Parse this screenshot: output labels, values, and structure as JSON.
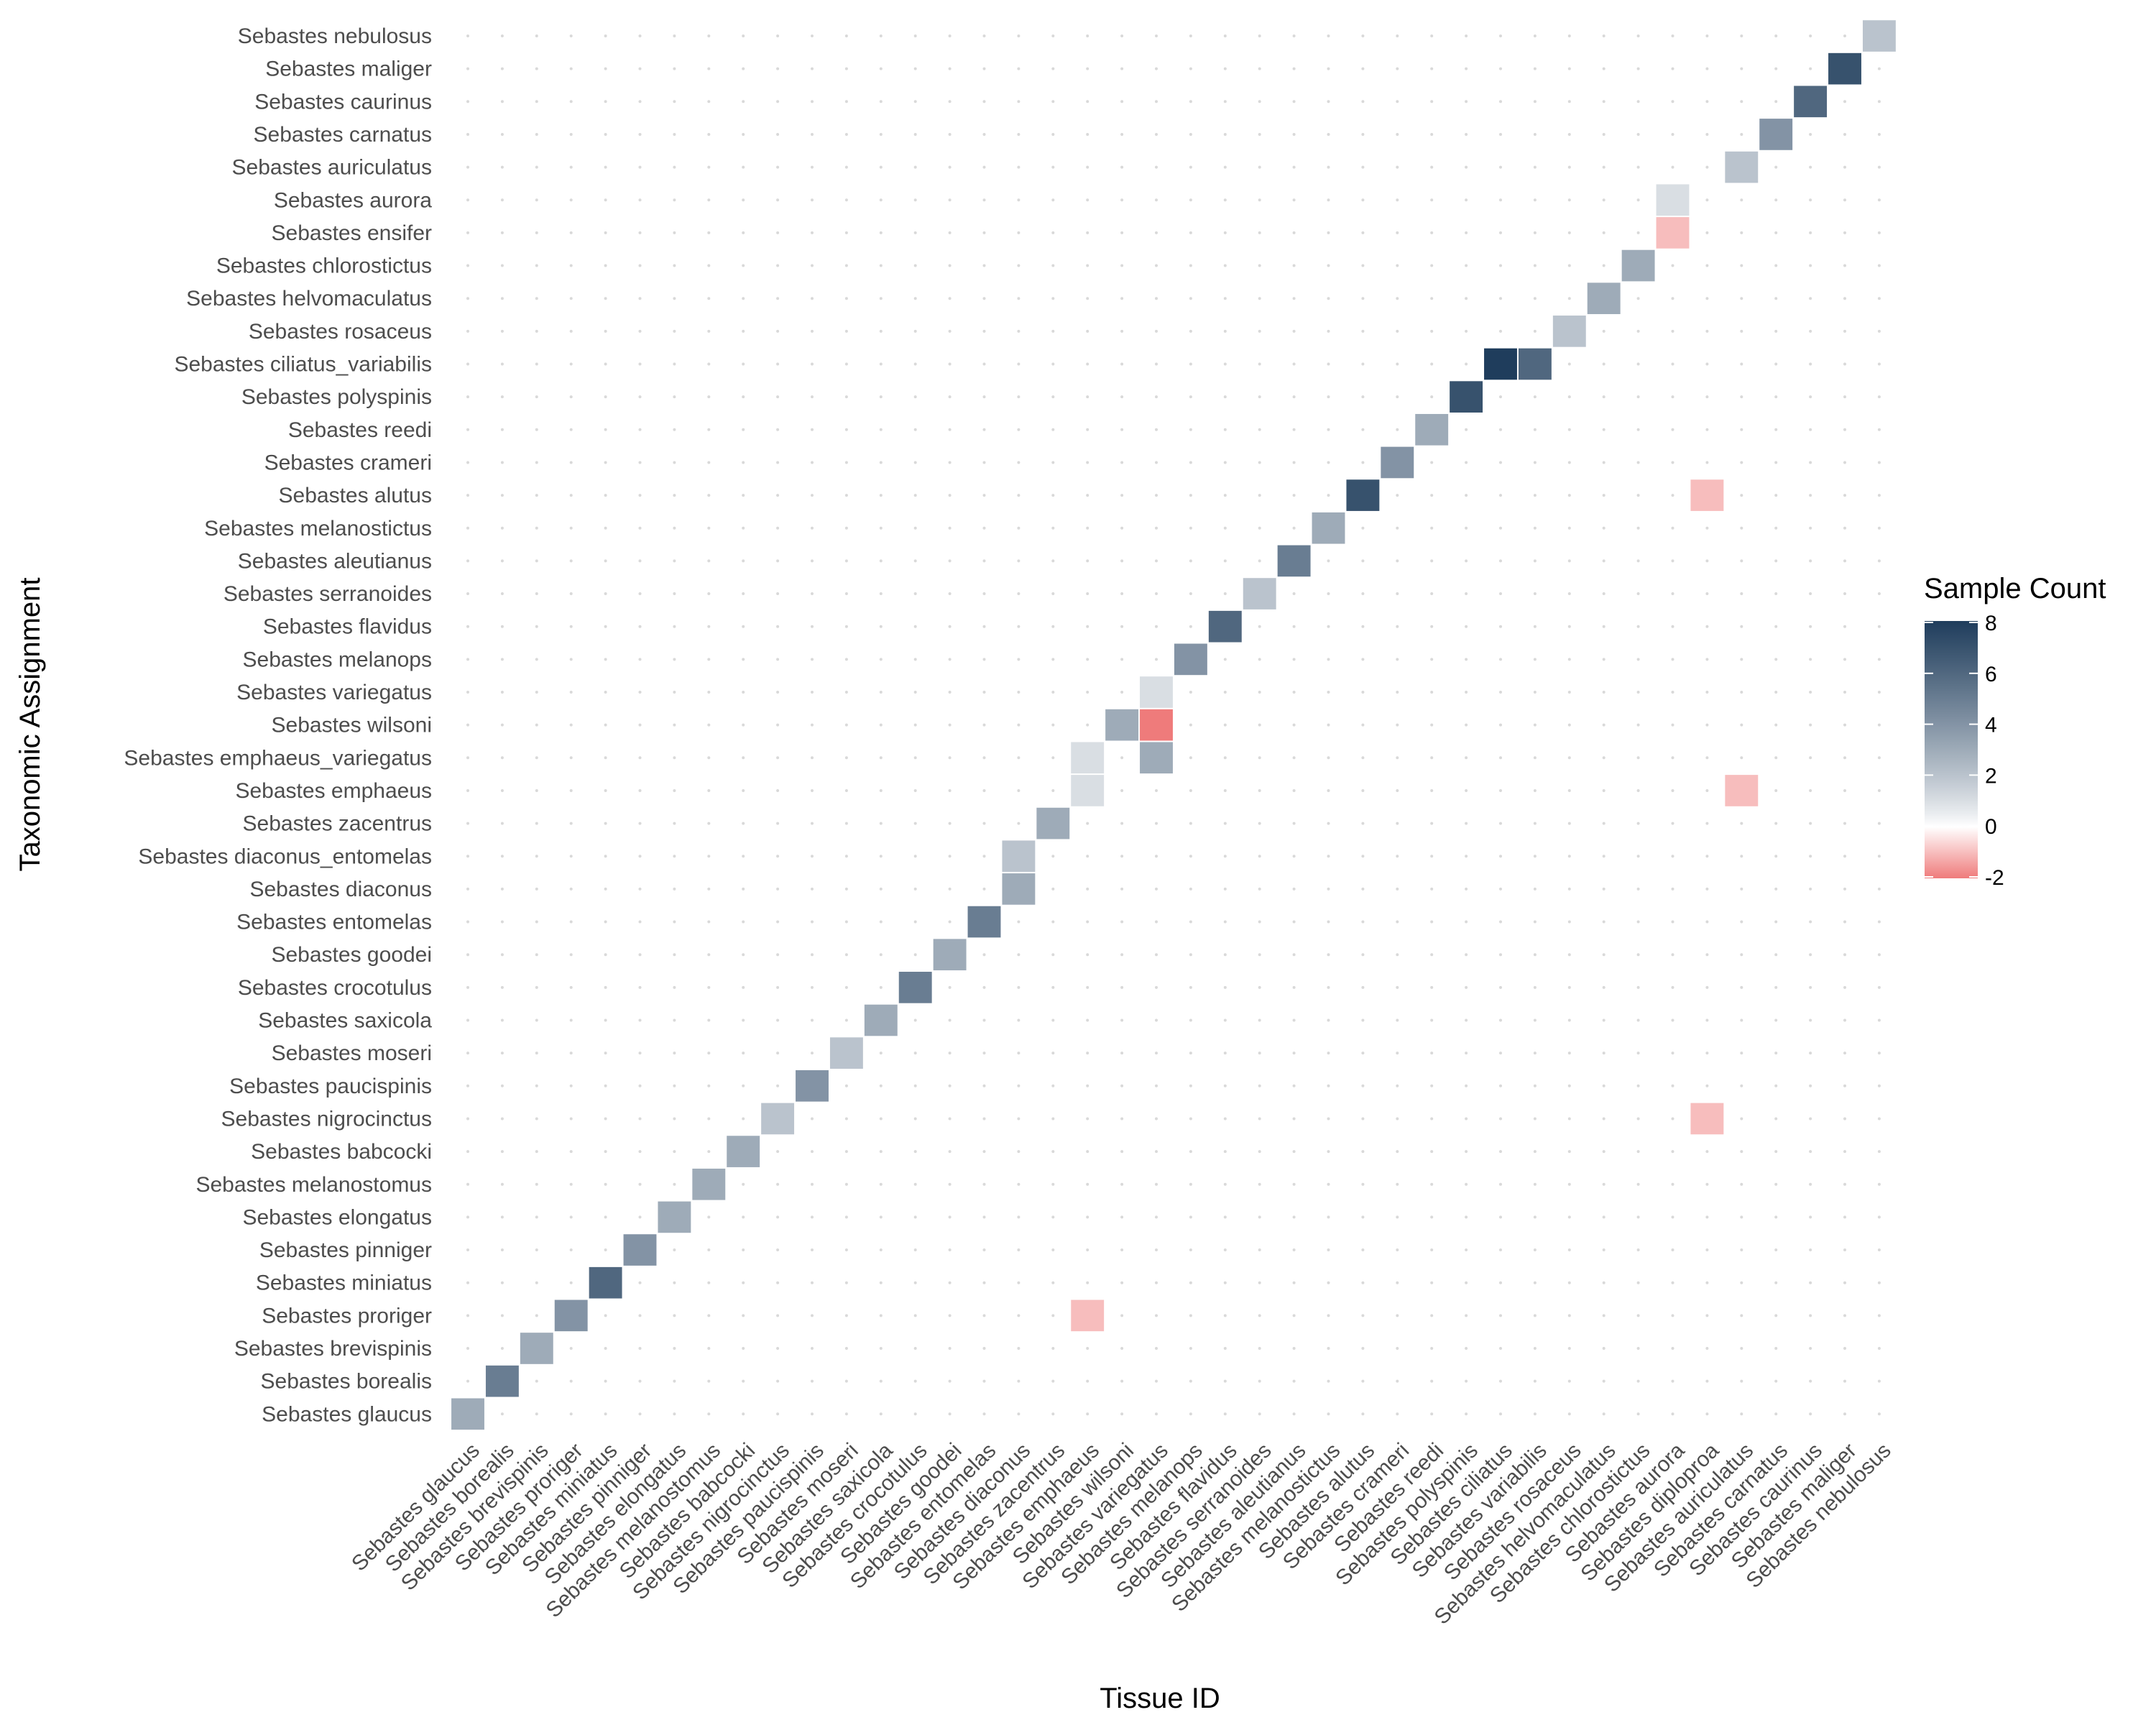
{
  "chart_data": {
    "type": "heatmap",
    "title": "",
    "xlabel": "Tissue ID",
    "ylabel": "Taxonomic Assignment",
    "x_categories": [
      "Sebastes glaucus",
      "Sebastes borealis",
      "Sebastes brevispinis",
      "Sebastes proriger",
      "Sebastes miniatus",
      "Sebastes pinniger",
      "Sebastes elongatus",
      "Sebastes melanostomus",
      "Sebastes babcocki",
      "Sebastes nigrocinctus",
      "Sebastes paucispinis",
      "Sebastes moseri",
      "Sebastes saxicola",
      "Sebastes crocotulus",
      "Sebastes goodei",
      "Sebastes entomelas",
      "Sebastes diaconus",
      "Sebastes zacentrus",
      "Sebastes emphaeus",
      "Sebastes wilsoni",
      "Sebastes variegatus",
      "Sebastes melanops",
      "Sebastes flavidus",
      "Sebastes serranoides",
      "Sebastes aleutianus",
      "Sebastes melanostictus",
      "Sebastes alutus",
      "Sebastes crameri",
      "Sebastes reedi",
      "Sebastes polyspinis",
      "Sebastes ciliatus",
      "Sebastes variabilis",
      "Sebastes rosaceus",
      "Sebastes helvomaculatus",
      "Sebastes chlorostictus",
      "Sebastes aurora",
      "Sebastes diploproa",
      "Sebastes auriculatus",
      "Sebastes carnatus",
      "Sebastes caurinus",
      "Sebastes maliger",
      "Sebastes nebulosus"
    ],
    "y_categories": [
      "Sebastes glaucus",
      "Sebastes borealis",
      "Sebastes brevispinis",
      "Sebastes proriger",
      "Sebastes miniatus",
      "Sebastes pinniger",
      "Sebastes elongatus",
      "Sebastes melanostomus",
      "Sebastes babcocki",
      "Sebastes nigrocinctus",
      "Sebastes paucispinis",
      "Sebastes moseri",
      "Sebastes saxicola",
      "Sebastes crocotulus",
      "Sebastes goodei",
      "Sebastes entomelas",
      "Sebastes diaconus",
      "Sebastes diaconus_entomelas",
      "Sebastes zacentrus",
      "Sebastes emphaeus",
      "Sebastes emphaeus_variegatus",
      "Sebastes wilsoni",
      "Sebastes variegatus",
      "Sebastes melanops",
      "Sebastes flavidus",
      "Sebastes serranoides",
      "Sebastes aleutianus",
      "Sebastes melanostictus",
      "Sebastes alutus",
      "Sebastes crameri",
      "Sebastes reedi",
      "Sebastes polyspinis",
      "Sebastes ciliatus_variabilis",
      "Sebastes rosaceus",
      "Sebastes helvomaculatus",
      "Sebastes chlorostictus",
      "Sebastes ensifer",
      "Sebastes aurora",
      "Sebastes auriculatus",
      "Sebastes carnatus",
      "Sebastes caurinus",
      "Sebastes maliger",
      "Sebastes nebulosus"
    ],
    "cells": [
      {
        "x": "Sebastes glaucus",
        "y": "Sebastes glaucus",
        "value": 3
      },
      {
        "x": "Sebastes borealis",
        "y": "Sebastes borealis",
        "value": 5
      },
      {
        "x": "Sebastes brevispinis",
        "y": "Sebastes brevispinis",
        "value": 3
      },
      {
        "x": "Sebastes proriger",
        "y": "Sebastes proriger",
        "value": 4
      },
      {
        "x": "Sebastes miniatus",
        "y": "Sebastes miniatus",
        "value": 6
      },
      {
        "x": "Sebastes pinniger",
        "y": "Sebastes pinniger",
        "value": 4
      },
      {
        "x": "Sebastes elongatus",
        "y": "Sebastes elongatus",
        "value": 3
      },
      {
        "x": "Sebastes melanostomus",
        "y": "Sebastes melanostomus",
        "value": 3
      },
      {
        "x": "Sebastes babcocki",
        "y": "Sebastes babcocki",
        "value": 3
      },
      {
        "x": "Sebastes nigrocinctus",
        "y": "Sebastes nigrocinctus",
        "value": 2
      },
      {
        "x": "Sebastes paucispinis",
        "y": "Sebastes paucispinis",
        "value": 4
      },
      {
        "x": "Sebastes moseri",
        "y": "Sebastes moseri",
        "value": 2
      },
      {
        "x": "Sebastes saxicola",
        "y": "Sebastes saxicola",
        "value": 3
      },
      {
        "x": "Sebastes crocotulus",
        "y": "Sebastes crocotulus",
        "value": 5
      },
      {
        "x": "Sebastes goodei",
        "y": "Sebastes goodei",
        "value": 3
      },
      {
        "x": "Sebastes entomelas",
        "y": "Sebastes entomelas",
        "value": 5
      },
      {
        "x": "Sebastes diaconus",
        "y": "Sebastes diaconus",
        "value": 3
      },
      {
        "x": "Sebastes diaconus",
        "y": "Sebastes diaconus_entomelas",
        "value": 2
      },
      {
        "x": "Sebastes zacentrus",
        "y": "Sebastes zacentrus",
        "value": 3
      },
      {
        "x": "Sebastes emphaeus",
        "y": "Sebastes emphaeus",
        "value": 1
      },
      {
        "x": "Sebastes emphaeus",
        "y": "Sebastes emphaeus_variegatus",
        "value": 1
      },
      {
        "x": "Sebastes emphaeus",
        "y": "Sebastes proriger",
        "value": -1
      },
      {
        "x": "Sebastes wilsoni",
        "y": "Sebastes wilsoni",
        "value": 3
      },
      {
        "x": "Sebastes variegatus",
        "y": "Sebastes wilsoni",
        "value": -2
      },
      {
        "x": "Sebastes variegatus",
        "y": "Sebastes emphaeus_variegatus",
        "value": 3
      },
      {
        "x": "Sebastes variegatus",
        "y": "Sebastes variegatus",
        "value": 1
      },
      {
        "x": "Sebastes melanops",
        "y": "Sebastes melanops",
        "value": 4
      },
      {
        "x": "Sebastes flavidus",
        "y": "Sebastes flavidus",
        "value": 6
      },
      {
        "x": "Sebastes serranoides",
        "y": "Sebastes serranoides",
        "value": 2
      },
      {
        "x": "Sebastes aleutianus",
        "y": "Sebastes aleutianus",
        "value": 5
      },
      {
        "x": "Sebastes melanostictus",
        "y": "Sebastes melanostictus",
        "value": 3
      },
      {
        "x": "Sebastes alutus",
        "y": "Sebastes alutus",
        "value": 7
      },
      {
        "x": "Sebastes crameri",
        "y": "Sebastes crameri",
        "value": 4
      },
      {
        "x": "Sebastes reedi",
        "y": "Sebastes reedi",
        "value": 3
      },
      {
        "x": "Sebastes polyspinis",
        "y": "Sebastes polyspinis",
        "value": 7
      },
      {
        "x": "Sebastes ciliatus",
        "y": "Sebastes ciliatus_variabilis",
        "value": 8
      },
      {
        "x": "Sebastes variabilis",
        "y": "Sebastes ciliatus_variabilis",
        "value": 6
      },
      {
        "x": "Sebastes rosaceus",
        "y": "Sebastes rosaceus",
        "value": 2
      },
      {
        "x": "Sebastes helvomaculatus",
        "y": "Sebastes helvomaculatus",
        "value": 3
      },
      {
        "x": "Sebastes chlorostictus",
        "y": "Sebastes chlorostictus",
        "value": 3
      },
      {
        "x": "Sebastes aurora",
        "y": "Sebastes aurora",
        "value": 1
      },
      {
        "x": "Sebastes aurora",
        "y": "Sebastes ensifer",
        "value": -1
      },
      {
        "x": "Sebastes diploproa",
        "y": "Sebastes alutus",
        "value": -1
      },
      {
        "x": "Sebastes diploproa",
        "y": "Sebastes nigrocinctus",
        "value": -1
      },
      {
        "x": "Sebastes auriculatus",
        "y": "Sebastes auriculatus",
        "value": 2
      },
      {
        "x": "Sebastes auriculatus",
        "y": "Sebastes emphaeus",
        "value": -1
      },
      {
        "x": "Sebastes carnatus",
        "y": "Sebastes carnatus",
        "value": 4
      },
      {
        "x": "Sebastes caurinus",
        "y": "Sebastes caurinus",
        "value": 6
      },
      {
        "x": "Sebastes maliger",
        "y": "Sebastes maliger",
        "value": 7
      },
      {
        "x": "Sebastes nebulosus",
        "y": "Sebastes nebulosus",
        "value": 2
      }
    ],
    "color_scale": {
      "title": "Sample Count",
      "min": -2,
      "max": 8,
      "ticks": [
        8,
        6,
        4,
        2,
        0,
        -2
      ],
      "tick_labels": [
        "8",
        "6",
        "4",
        "2",
        "0",
        "-2"
      ],
      "low_color": "#ef7b7b",
      "mid_color": "#ffffff",
      "high_color": "#1f3d5c",
      "mid_value": 0
    },
    "grid": "dotted",
    "legend_position": "right"
  }
}
